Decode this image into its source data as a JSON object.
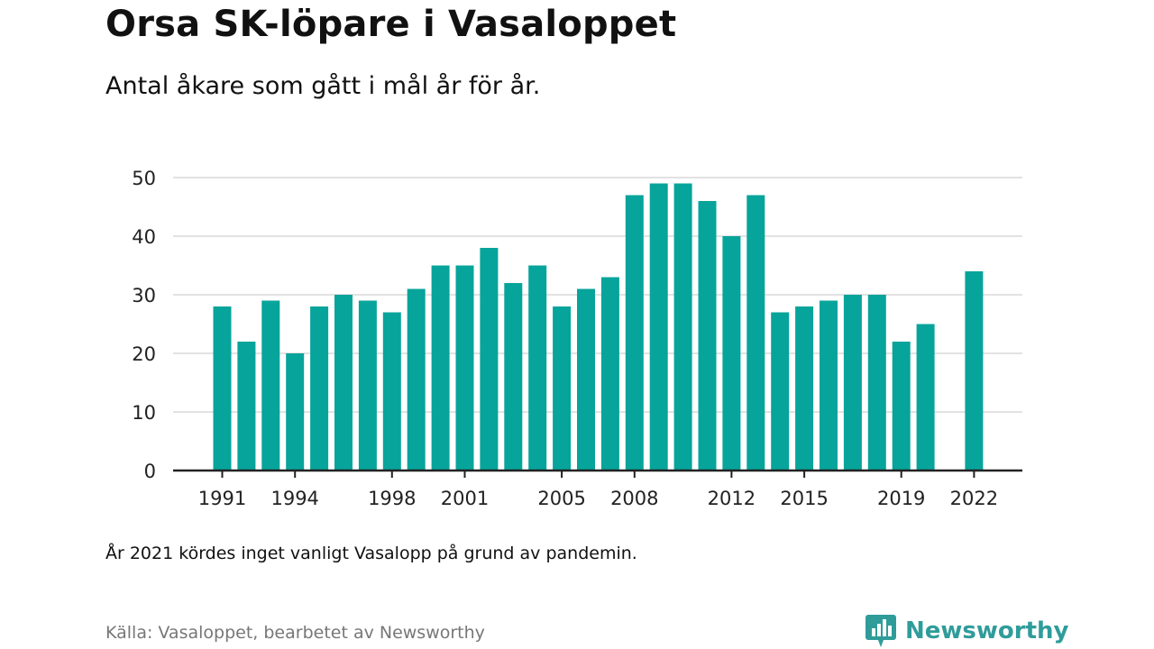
{
  "title": "Orsa SK-löpare i Vasaloppet",
  "subtitle": "Antal åkare som gått i mål år för år.",
  "note": "År 2021 kördes inget vanligt Vasalopp på grund av pandemin.",
  "source": "Källa: Vasaloppet, bearbetet av Newsworthy",
  "brand": "Newsworthy",
  "colors": {
    "bar": "#07a49b",
    "grid": "#d9d9d9",
    "axis": "#222222",
    "brand": "#2f9c9a"
  },
  "chart_data": {
    "type": "bar",
    "title": "Orsa SK-löpare i Vasaloppet",
    "subtitle": "Antal åkare som gått i mål år för år.",
    "xlabel": "",
    "ylabel": "",
    "ylim": [
      0,
      50
    ],
    "yticks": [
      0,
      10,
      20,
      30,
      40,
      50
    ],
    "grid": true,
    "categories": [
      1991,
      1992,
      1993,
      1994,
      1995,
      1996,
      1997,
      1998,
      1999,
      2000,
      2001,
      2002,
      2003,
      2004,
      2005,
      2006,
      2007,
      2008,
      2009,
      2010,
      2011,
      2012,
      2013,
      2014,
      2015,
      2016,
      2017,
      2018,
      2019,
      2020,
      2021,
      2022
    ],
    "values": [
      28,
      22,
      29,
      20,
      28,
      30,
      29,
      27,
      31,
      35,
      35,
      38,
      32,
      35,
      28,
      31,
      33,
      47,
      49,
      49,
      46,
      40,
      47,
      27,
      28,
      29,
      30,
      30,
      22,
      25,
      null,
      34
    ],
    "xtick_labels": [
      "1991",
      "1994",
      "1998",
      "2001",
      "2005",
      "2008",
      "2012",
      "2015",
      "2019",
      "2022"
    ]
  }
}
